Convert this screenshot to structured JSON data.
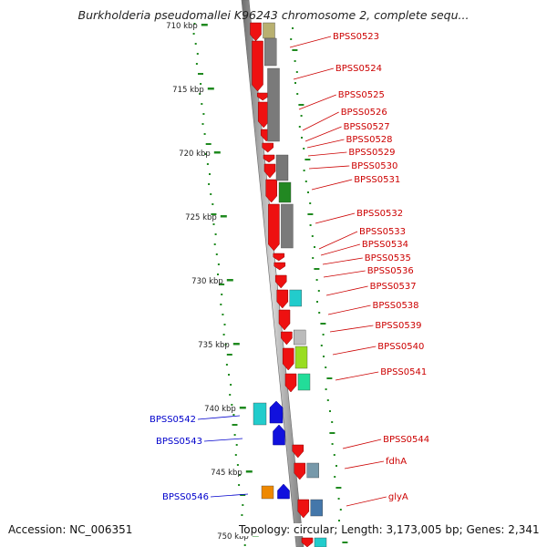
{
  "title": "Burkholderia pseudomallei K96243 chromosome 2, complete sequ...",
  "footer": {
    "accession": "Accession: NC_006351",
    "stats": "Topology: circular; Length: 3,173,005 bp; Genes: 2,341"
  },
  "colors": {
    "forward_gene": "#ee1111",
    "reverse_gene": "#1111dd",
    "backbone": "#9a9a9a",
    "gc_ticks": "#1f8a1f",
    "label_red": "#cc0000",
    "label_blue": "#0000cc"
  },
  "ruler_labels": [
    "710 kbp",
    "715 kbp",
    "720 kbp",
    "725 kbp",
    "730 kbp",
    "735 kbp",
    "740 kbp",
    "745 kbp",
    "750 kbp"
  ],
  "forward_labels": [
    "BPSS0523",
    "BPSS0524",
    "BPSS0525",
    "BPSS0526",
    "BPSS0527",
    "BPSS0528",
    "BPSS0529",
    "BPSS0530",
    "BPSS0531",
    "BPSS0532",
    "BPSS0533",
    "BPSS0534",
    "BPSS0535",
    "BPSS0536",
    "BPSS0537",
    "BPSS0538",
    "BPSS0539",
    "BPSS0540",
    "BPSS0541",
    "BPSS0544",
    "fdhA",
    "glyA"
  ],
  "reverse_labels": [
    "BPSS0542",
    "BPSS0543",
    "BPSS0546"
  ]
}
